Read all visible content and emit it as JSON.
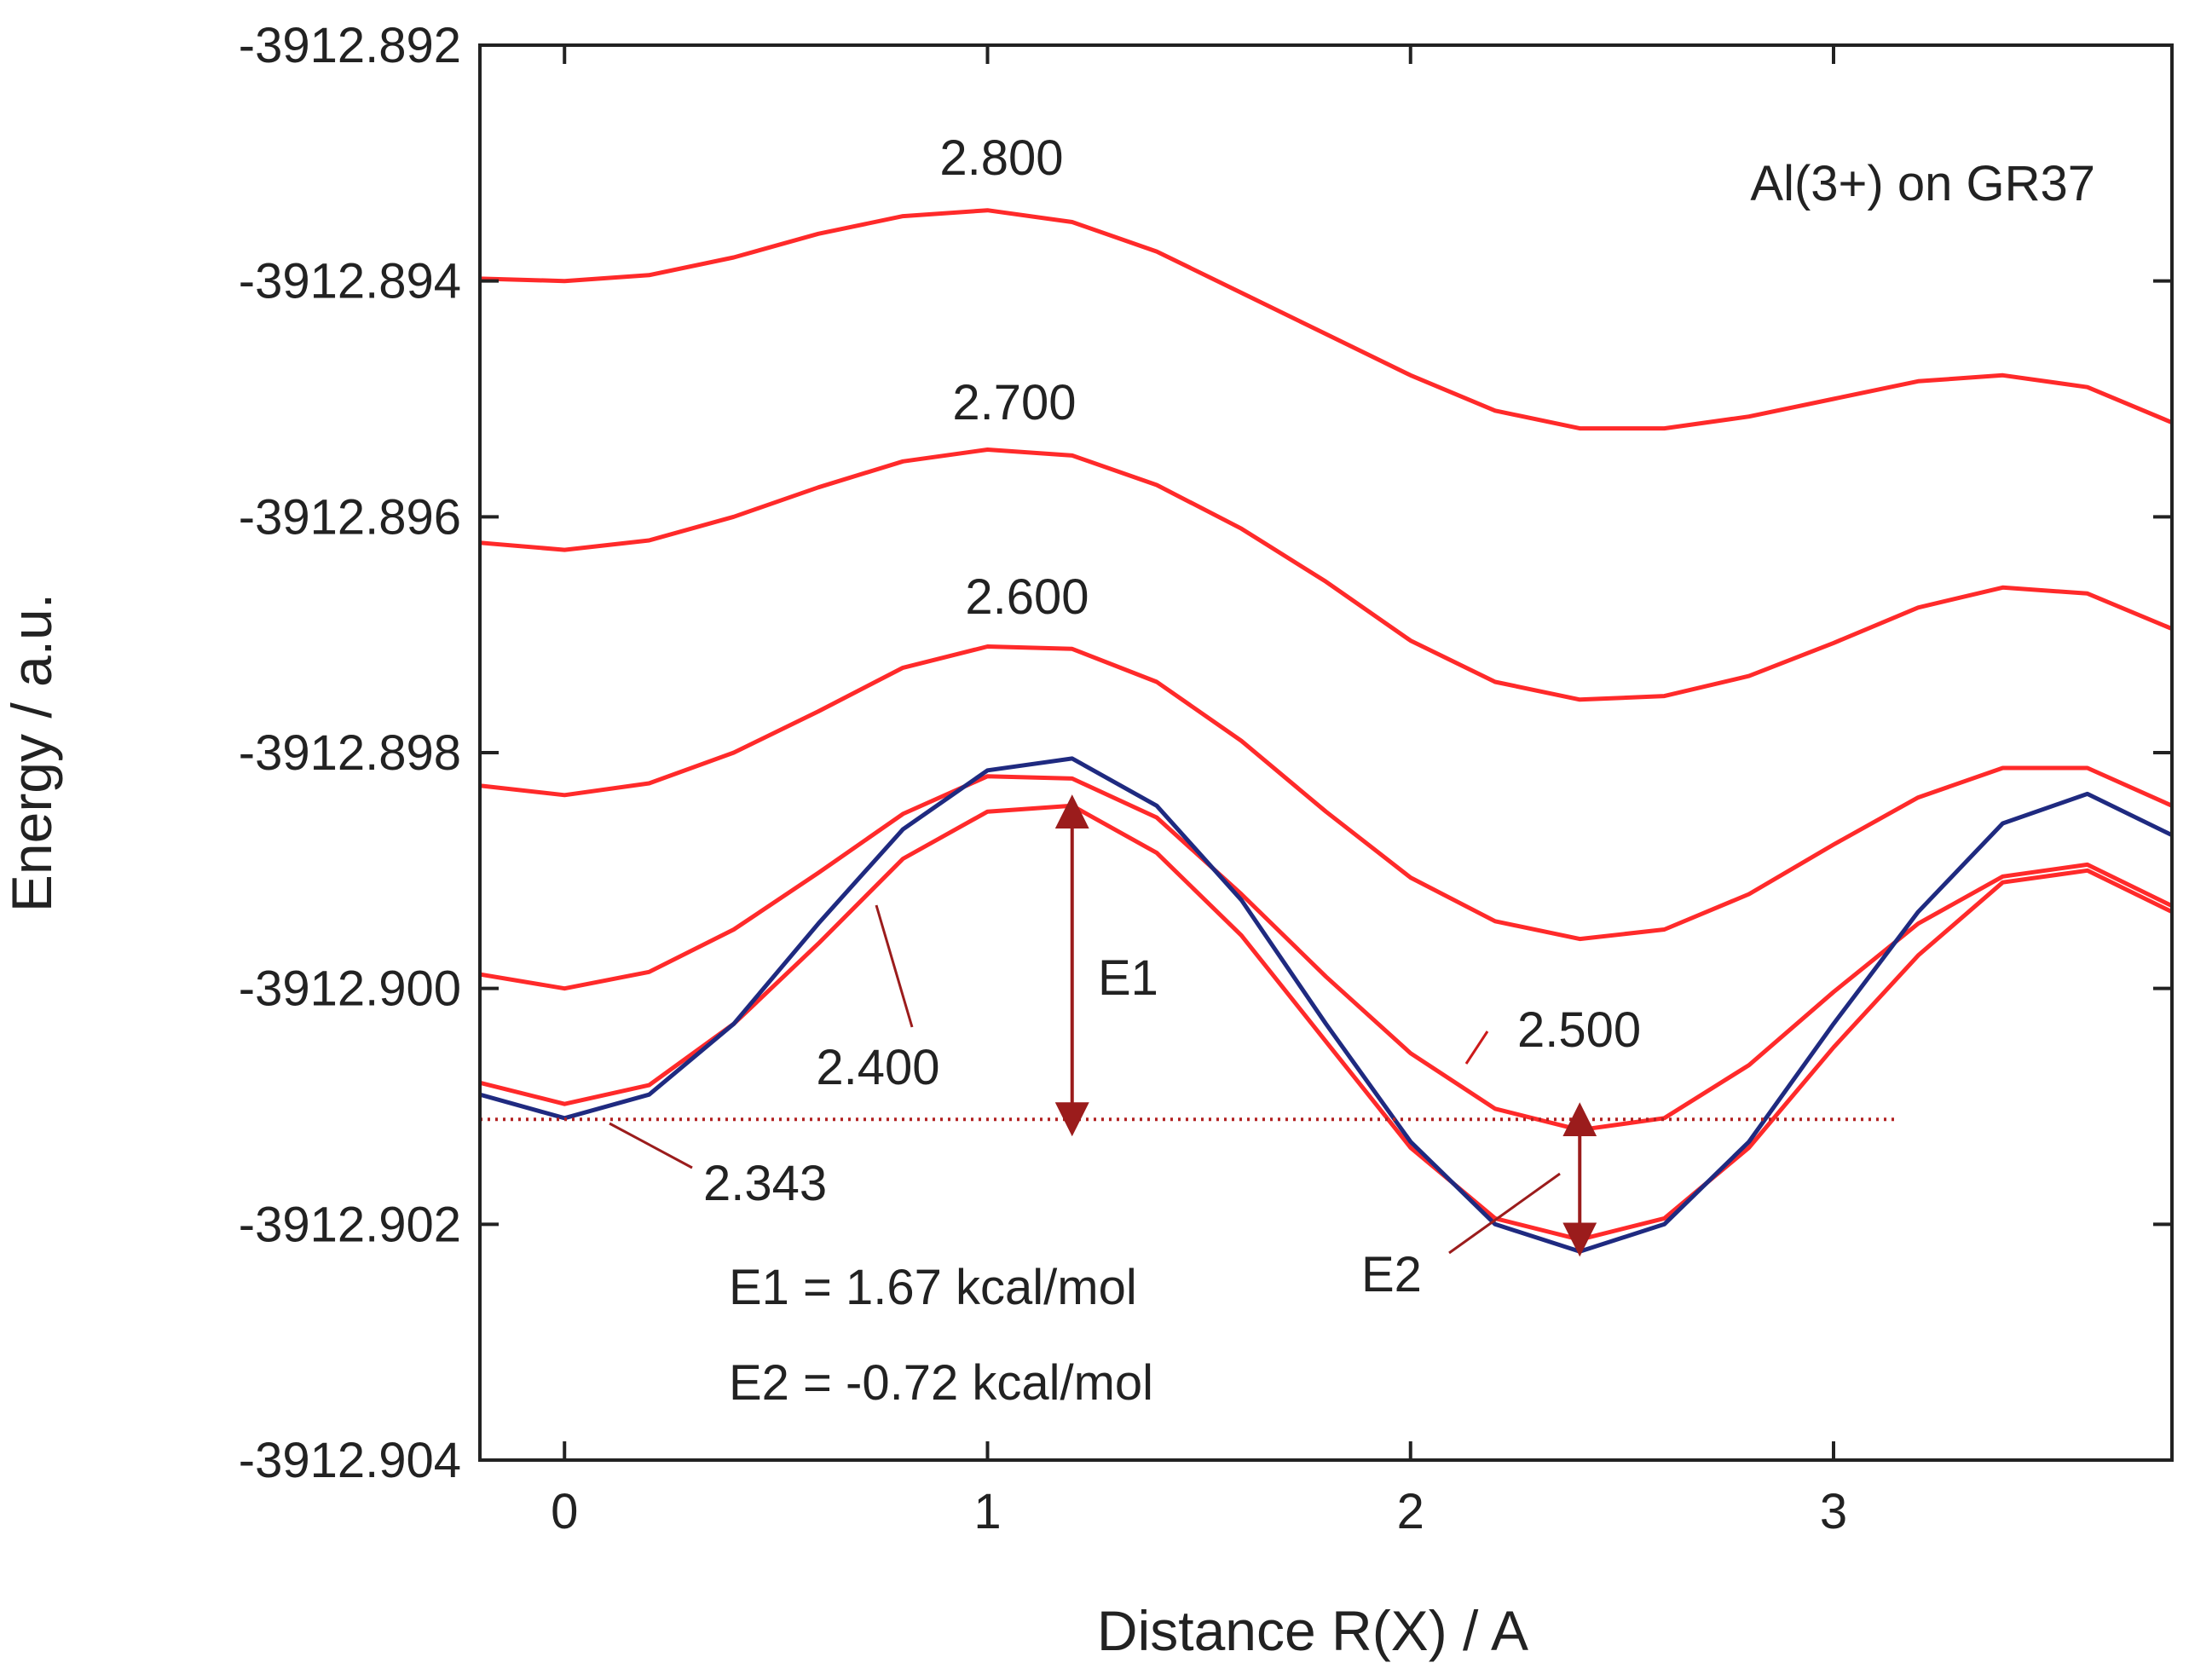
{
  "chart_data": {
    "type": "line",
    "title": "",
    "xlabel": "Distance R(X) / A",
    "ylabel": "Energy / a.u.",
    "xlim": [
      -0.2,
      3.8
    ],
    "ylim": [
      -3912.904,
      -3912.892
    ],
    "xticks": [
      0,
      1,
      2,
      3
    ],
    "xtick_labels": [
      "0",
      "1",
      "2",
      "3"
    ],
    "yticks": [
      -3912.904,
      -3912.902,
      -3912.9,
      -3912.898,
      -3912.896,
      -3912.894,
      -3912.892
    ],
    "ytick_labels": [
      "-3912.904",
      "-3912.902",
      "-3912.900",
      "-3912.898",
      "-3912.896",
      "-3912.894",
      "-3912.892"
    ],
    "grid": false,
    "x": [
      -0.2,
      0,
      0.2,
      0.4,
      0.6,
      0.8,
      1.0,
      1.2,
      1.4,
      1.6,
      1.8,
      2.0,
      2.2,
      2.4,
      2.6,
      2.8,
      3.0,
      3.2,
      3.4,
      3.6,
      3.8
    ],
    "series": [
      {
        "name": "2.800",
        "color": "#ff2a2a",
        "values": [
          -3912.89398,
          -3912.894,
          -3912.89395,
          -3912.8938,
          -3912.8936,
          -3912.89345,
          -3912.8934,
          -3912.8935,
          -3912.89375,
          -3912.8941,
          -3912.89445,
          -3912.8948,
          -3912.8951,
          -3912.89525,
          -3912.89525,
          -3912.89515,
          -3912.895,
          -3912.89485,
          -3912.8948,
          -3912.8949,
          -3912.8952
        ]
      },
      {
        "name": "2.700",
        "color": "#ff2a2a",
        "values": [
          -3912.89622,
          -3912.89628,
          -3912.8962,
          -3912.896,
          -3912.89575,
          -3912.89553,
          -3912.89543,
          -3912.89548,
          -3912.89573,
          -3912.8961,
          -3912.89655,
          -3912.89705,
          -3912.8974,
          -3912.89755,
          -3912.89752,
          -3912.89735,
          -3912.89707,
          -3912.89677,
          -3912.8966,
          -3912.89665,
          -3912.89695
        ]
      },
      {
        "name": "2.600",
        "color": "#ff2a2a",
        "values": [
          -3912.89828,
          -3912.89836,
          -3912.89826,
          -3912.898,
          -3912.89765,
          -3912.89728,
          -3912.8971,
          -3912.89712,
          -3912.8974,
          -3912.8979,
          -3912.8985,
          -3912.89906,
          -3912.89943,
          -3912.89958,
          -3912.8995,
          -3912.8992,
          -3912.89878,
          -3912.89838,
          -3912.89813,
          -3912.89813,
          -3912.89845
        ]
      },
      {
        "name": "2.500",
        "color": "#ff2a2a",
        "values": [
          -3912.89988,
          -3912.9,
          -3912.89986,
          -3912.8995,
          -3912.89902,
          -3912.89852,
          -3912.8982,
          -3912.89822,
          -3912.89855,
          -3912.8992,
          -3912.8999,
          -3912.90055,
          -3912.90102,
          -3912.9012,
          -3912.9011,
          -3912.90065,
          -3912.90003,
          -3912.89945,
          -3912.89905,
          -3912.89895,
          -3912.8993
        ]
      },
      {
        "name": "2.400",
        "color": "#ff2a2a",
        "values": [
          -3912.9008,
          -3912.90098,
          -3912.90082,
          -3912.9003,
          -3912.89962,
          -3912.8989,
          -3912.8985,
          -3912.89845,
          -3912.89885,
          -3912.89955,
          -3912.90045,
          -3912.90135,
          -3912.90195,
          -3912.90213,
          -3912.90195,
          -3912.90135,
          -3912.9005,
          -3912.89972,
          -3912.8991,
          -3912.899,
          -3912.89935
        ]
      },
      {
        "name": "2.343",
        "color": "#1f2a80",
        "values": [
          -3912.9009,
          -3912.9011,
          -3912.9009,
          -3912.9003,
          -3912.89945,
          -3912.89865,
          -3912.89815,
          -3912.89805,
          -3912.89845,
          -3912.89925,
          -3912.9003,
          -3912.9013,
          -3912.902,
          -3912.90223,
          -3912.902,
          -3912.9013,
          -3912.9003,
          -3912.89935,
          -3912.8986,
          -3912.89835,
          -3912.8987
        ]
      }
    ],
    "reference_line": {
      "value": -3912.90111,
      "style": "dotted",
      "color": "#b22222",
      "x_start": -0.2,
      "x_end": 3.15
    },
    "annotations": {
      "box_label": "Al(3+) on GR37",
      "e1_label": "E1",
      "e2_label": "E2",
      "e1_value": "E1 = 1.67 kcal/mol",
      "e2_value": "E2 = -0.72 kcal/mol"
    },
    "arrows": {
      "e1": {
        "x": 1.2,
        "from": -3912.90111,
        "to": -3912.8985
      },
      "e2": {
        "x": 2.4,
        "from": -3912.90111,
        "to": -3912.90213
      }
    }
  }
}
